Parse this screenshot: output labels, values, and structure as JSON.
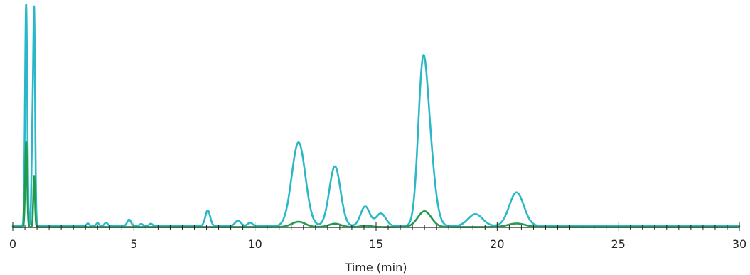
{
  "chart_data": {
    "type": "line",
    "title": "",
    "xlabel": "Time (min)",
    "ylabel": "",
    "xlim": [
      0,
      30
    ],
    "ylim": [
      0,
      1
    ],
    "grid": false,
    "x_ticks": [
      0,
      5,
      10,
      15,
      20,
      25,
      30
    ],
    "x_minor_step": 0.5,
    "y_axis_visible": false,
    "series": [
      {
        "color": "#2ab8c8",
        "baseline": 0.006,
        "peaks": [
          {
            "x": 0.55,
            "height": 1.02,
            "width": 0.045
          },
          {
            "x": 0.8,
            "height": 0.33,
            "width": 0.035
          },
          {
            "x": 0.88,
            "height": 0.985,
            "width": 0.04
          },
          {
            "x": 3.1,
            "height": 0.012,
            "width": 0.06
          },
          {
            "x": 3.5,
            "height": 0.014,
            "width": 0.06
          },
          {
            "x": 3.85,
            "height": 0.016,
            "width": 0.07
          },
          {
            "x": 4.8,
            "height": 0.03,
            "width": 0.08
          },
          {
            "x": 5.3,
            "height": 0.01,
            "width": 0.07
          },
          {
            "x": 5.7,
            "height": 0.011,
            "width": 0.07
          },
          {
            "x": 8.05,
            "height": 0.072,
            "width": 0.1
          },
          {
            "x": 9.3,
            "height": 0.025,
            "width": 0.12
          },
          {
            "x": 9.8,
            "height": 0.016,
            "width": 0.1
          },
          {
            "x": 11.8,
            "height": 0.385,
            "width": 0.28
          },
          {
            "x": 13.3,
            "height": 0.275,
            "width": 0.23
          },
          {
            "x": 14.55,
            "height": 0.09,
            "width": 0.19
          },
          {
            "x": 15.2,
            "height": 0.058,
            "width": 0.2
          },
          {
            "x": 16.9,
            "height": 0.42,
            "width": 0.18
          },
          {
            "x": 17.1,
            "height": 0.45,
            "width": 0.26
          },
          {
            "x": 19.1,
            "height": 0.055,
            "width": 0.3
          },
          {
            "x": 20.8,
            "height": 0.155,
            "width": 0.3
          }
        ]
      },
      {
        "color": "#1f9a4e",
        "baseline": 0.002,
        "peaks": [
          {
            "x": 0.55,
            "height": 0.39,
            "width": 0.04
          },
          {
            "x": 0.88,
            "height": 0.235,
            "width": 0.035
          },
          {
            "x": 11.8,
            "height": 0.024,
            "width": 0.28
          },
          {
            "x": 13.3,
            "height": 0.015,
            "width": 0.25
          },
          {
            "x": 14.6,
            "height": 0.006,
            "width": 0.2
          },
          {
            "x": 17.0,
            "height": 0.072,
            "width": 0.28
          },
          {
            "x": 20.8,
            "height": 0.016,
            "width": 0.35
          }
        ]
      }
    ]
  }
}
